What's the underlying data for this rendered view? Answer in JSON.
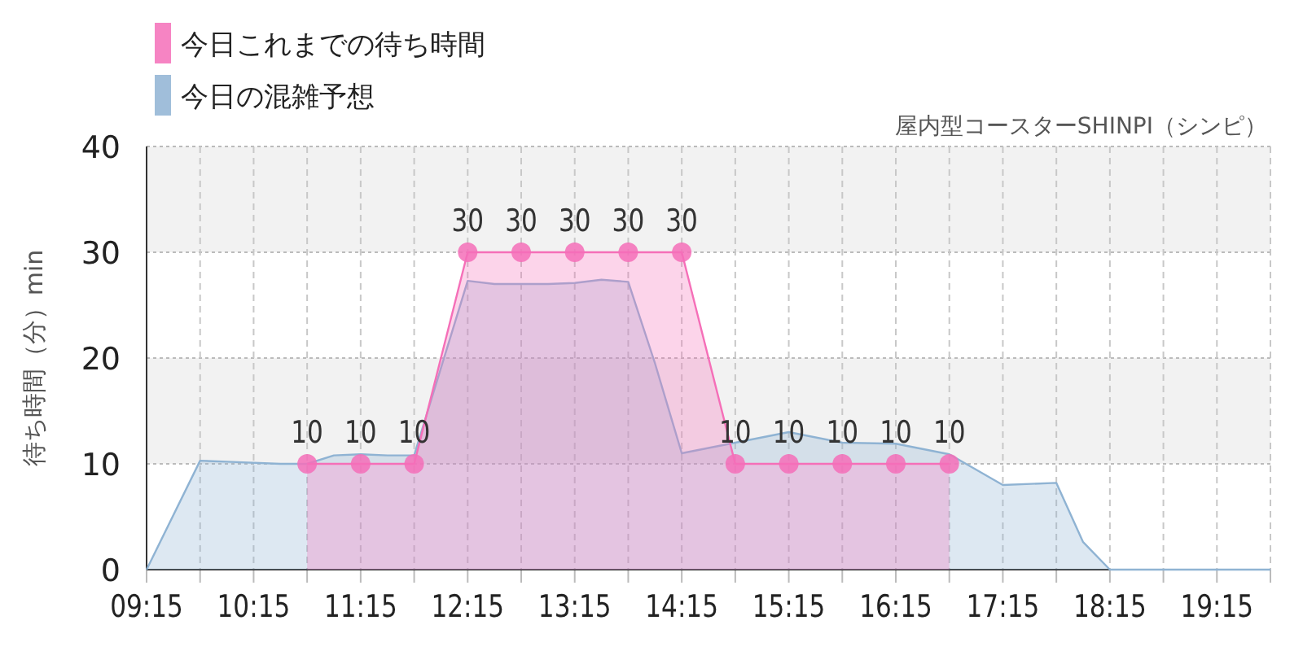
{
  "chart_data": {
    "type": "area",
    "title": "屋内型コースターSHINPI（シンピ）",
    "ylabel": "待ち時間（分）min",
    "legend": "top left",
    "grid": true,
    "xlim": [
      9.25,
      19.75
    ],
    "xticks": [
      {
        "value": 9.25,
        "label": "09:15"
      },
      {
        "value": 9.75,
        "label": null
      },
      {
        "value": 10.25,
        "label": "10:15"
      },
      {
        "value": 10.75,
        "label": null
      },
      {
        "value": 11.25,
        "label": "11:15"
      },
      {
        "value": 11.75,
        "label": null
      },
      {
        "value": 12.25,
        "label": "12:15"
      },
      {
        "value": 12.75,
        "label": null
      },
      {
        "value": 13.25,
        "label": "13:15"
      },
      {
        "value": 13.75,
        "label": null
      },
      {
        "value": 14.25,
        "label": "14:15"
      },
      {
        "value": 14.75,
        "label": null
      },
      {
        "value": 15.25,
        "label": "15:15"
      },
      {
        "value": 15.75,
        "label": null
      },
      {
        "value": 16.25,
        "label": "16:15"
      },
      {
        "value": 16.75,
        "label": null
      },
      {
        "value": 17.25,
        "label": "17:15"
      },
      {
        "value": 17.75,
        "label": null
      },
      {
        "value": 18.25,
        "label": "18:15"
      },
      {
        "value": 18.75,
        "label": null
      },
      {
        "value": 19.25,
        "label": "19:15"
      },
      {
        "value": 19.75,
        "label": null
      }
    ],
    "ylim": [
      0,
      40
    ],
    "yticks": [
      0,
      10,
      20,
      30,
      40
    ],
    "bands": [
      {
        "axis": "y",
        "from": 10,
        "to": 20,
        "color": "#f2f2f2"
      },
      {
        "axis": "y",
        "from": 30,
        "to": 40,
        "color": "#f2f2f2"
      }
    ],
    "series": [
      {
        "name": "今日これまでの待ち時間",
        "color": "#f56fb8",
        "marker": "circle",
        "x": [
          10.75,
          11.25,
          11.75,
          12.25,
          12.75,
          13.25,
          13.75,
          14.25,
          14.75,
          15.25,
          15.75,
          16.25,
          16.75
        ],
        "values": [
          10,
          10,
          10,
          30,
          30,
          30,
          30,
          30,
          10,
          10,
          10,
          10,
          10
        ],
        "value_labels": [
          "10",
          "10",
          "10",
          "30",
          "30",
          "30",
          "30",
          "30",
          "10",
          "10",
          "10",
          "10",
          "10"
        ]
      },
      {
        "name": "今日の混雑予想",
        "color": "#8fb3d3",
        "marker": "none",
        "x": [
          9.25,
          9.75,
          10.0,
          10.5,
          10.75,
          11.0,
          11.25,
          11.5,
          11.75,
          12.25,
          12.5,
          13.0,
          13.25,
          13.5,
          13.75,
          14.0,
          14.25,
          14.75,
          15.25,
          15.75,
          16.25,
          16.75,
          17.25,
          17.75,
          18.0,
          18.25,
          19.75
        ],
        "values": [
          0,
          10.3,
          10.2,
          10.0,
          10.0,
          10.8,
          10.9,
          10.8,
          10.8,
          27.3,
          27.0,
          27.0,
          27.1,
          27.4,
          27.2,
          19.5,
          11.0,
          12.0,
          13.0,
          12.0,
          11.9,
          10.9,
          8.0,
          8.2,
          2.6,
          0,
          0
        ]
      }
    ]
  }
}
